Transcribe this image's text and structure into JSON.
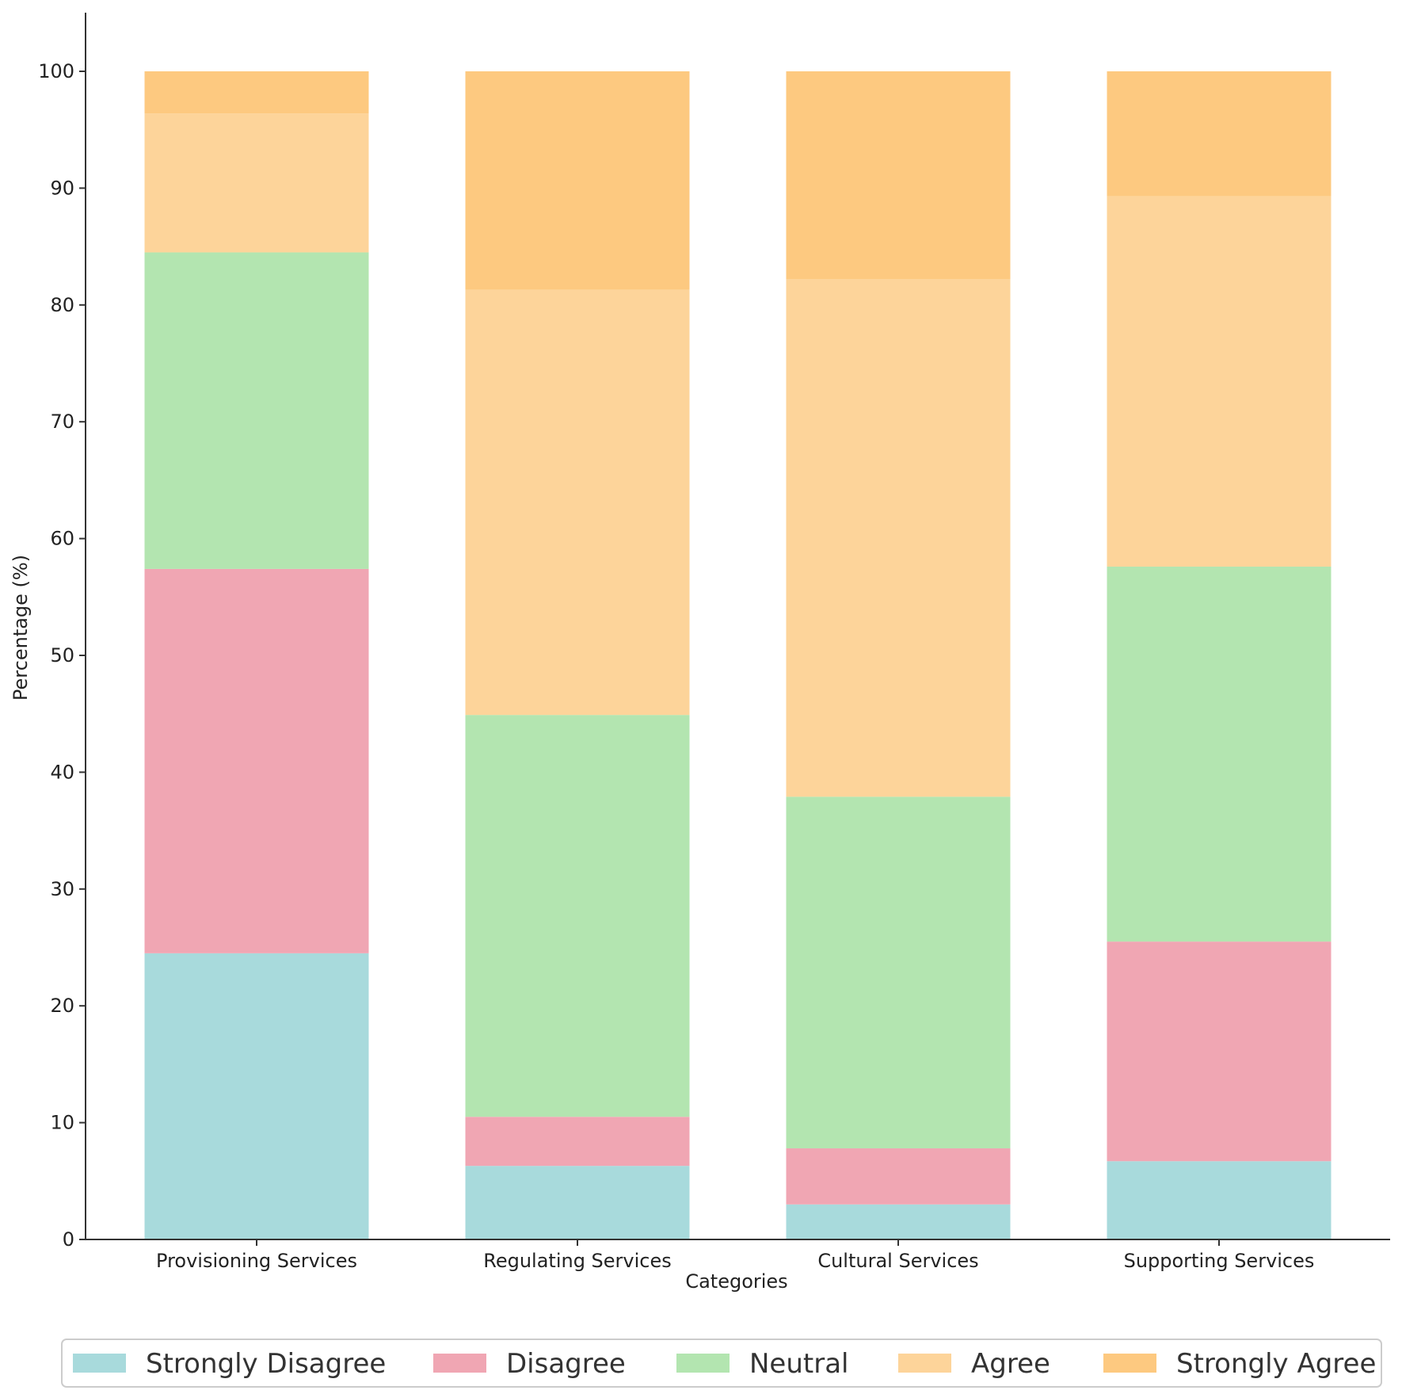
{
  "chart_data": {
    "type": "bar",
    "stacked": true,
    "title": "",
    "xlabel": "Categories",
    "ylabel": "Percentage (%)",
    "ylim": [
      0,
      105
    ],
    "yticks": [
      0,
      10,
      20,
      30,
      40,
      50,
      60,
      70,
      80,
      90,
      100
    ],
    "grid": false,
    "legend_position": "bottom",
    "categories": [
      "Provisioning Services",
      "Regulating Services",
      "Cultural Services",
      "Supporting Services"
    ],
    "series": [
      {
        "name": "Strongly Disagree",
        "color": "#a8dadc",
        "values": [
          24.5,
          6.3,
          3.0,
          6.7
        ]
      },
      {
        "name": "Disagree",
        "color": "#f0a6b3",
        "values": [
          32.9,
          4.2,
          4.8,
          18.8
        ]
      },
      {
        "name": "Neutral",
        "color": "#b3e5b0",
        "values": [
          27.1,
          34.4,
          30.1,
          32.1
        ]
      },
      {
        "name": "Agree",
        "color": "#fdd49a",
        "values": [
          11.9,
          36.4,
          44.3,
          31.7
        ]
      },
      {
        "name": "Strongly Agree",
        "color": "#fdc980",
        "values": [
          3.6,
          18.7,
          17.8,
          10.7
        ]
      }
    ]
  }
}
